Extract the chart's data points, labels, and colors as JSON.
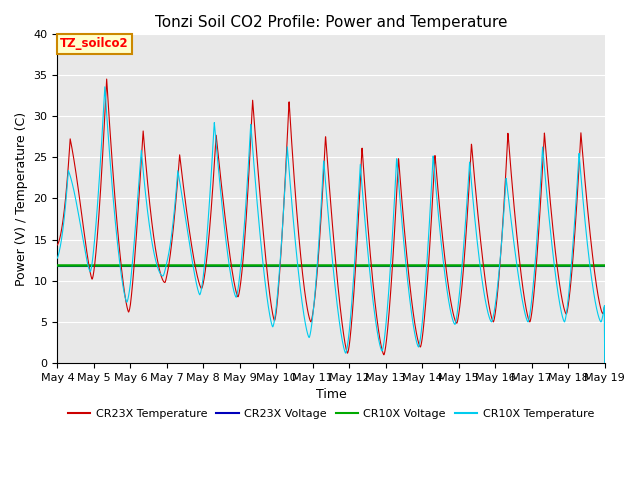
{
  "title": "Tonzi Soil CO2 Profile: Power and Temperature",
  "xlabel": "Time",
  "ylabel": "Power (V) / Temperature (C)",
  "ylim": [
    0,
    40
  ],
  "cr23x_voltage_value": 11.8,
  "cr10x_voltage_value": 11.9,
  "colors": {
    "cr23x_temp": "#cc0000",
    "cr23x_voltage": "#0000bb",
    "cr10x_voltage": "#00aa00",
    "cr10x_temp": "#00ccee"
  },
  "background_color": "#e8e8e8",
  "annotation_text": "TZ_soilco2",
  "annotation_bg": "#ffffcc",
  "annotation_border": "#cc8800",
  "x_tick_labels": [
    "May 4",
    "May 5",
    "May 6",
    "May 7",
    "May 8",
    "May 9",
    "May 10",
    "May 11",
    "May 12",
    "May 13",
    "May 14",
    "May 15",
    "May 16",
    "May 17",
    "May 18",
    "May 19"
  ],
  "title_fontsize": 11,
  "label_fontsize": 9,
  "tick_fontsize": 8
}
